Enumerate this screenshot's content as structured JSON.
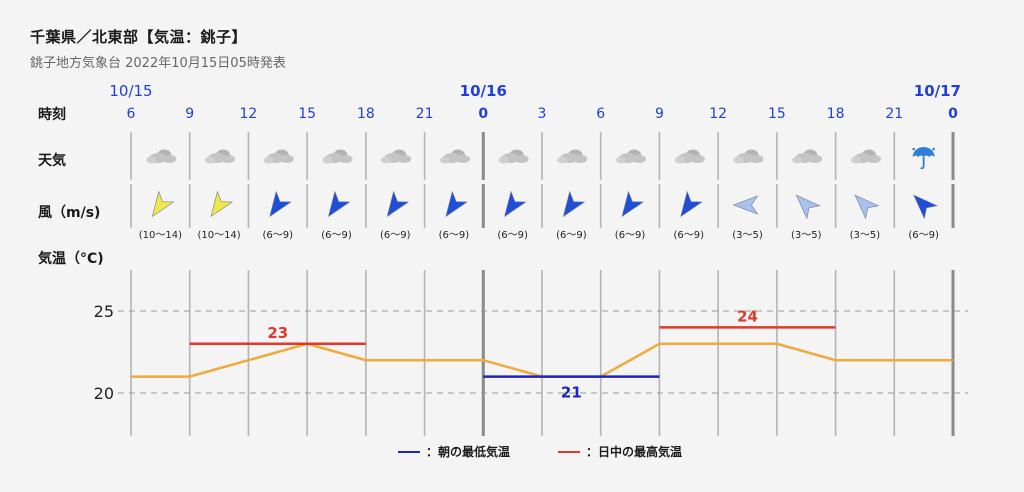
{
  "header": {
    "title": "千葉県／北東部【気温：銚子】",
    "subtitle": "銚子地方気象台 2022年10月15日05時発表"
  },
  "rows": {
    "time_label": "時刻",
    "weather_label": "天気",
    "wind_label": "風（m/s)",
    "temp_label": "気温（°C)"
  },
  "dates": [
    {
      "label": "10/15",
      "col": 0,
      "highlight": false
    },
    {
      "label": "10/16",
      "col": 6,
      "highlight": true
    },
    {
      "label": "10/17",
      "col": 14,
      "highlight": true
    }
  ],
  "hours": [
    "6",
    "9",
    "12",
    "15",
    "18",
    "21",
    "0",
    "3",
    "6",
    "9",
    "12",
    "15",
    "18",
    "21",
    "0"
  ],
  "weather": [
    "cloudy",
    "cloudy",
    "cloudy",
    "cloudy",
    "cloudy",
    "cloudy",
    "cloudy",
    "cloudy",
    "cloudy",
    "cloudy",
    "cloudy",
    "cloudy",
    "cloudy",
    "umbrella"
  ],
  "wind": [
    {
      "range": "(10〜14)",
      "color": "#f0e84a",
      "dir": "sw"
    },
    {
      "range": "(10〜14)",
      "color": "#f0e84a",
      "dir": "sw"
    },
    {
      "range": "(6〜9)",
      "color": "#1f4fd6",
      "dir": "sw"
    },
    {
      "range": "(6〜9)",
      "color": "#1f4fd6",
      "dir": "sw"
    },
    {
      "range": "(6〜9)",
      "color": "#1f4fd6",
      "dir": "sw"
    },
    {
      "range": "(6〜9)",
      "color": "#1f4fd6",
      "dir": "sw"
    },
    {
      "range": "(6〜9)",
      "color": "#1f4fd6",
      "dir": "sw"
    },
    {
      "range": "(6〜9)",
      "color": "#1f4fd6",
      "dir": "sw"
    },
    {
      "range": "(6〜9)",
      "color": "#1f4fd6",
      "dir": "sw"
    },
    {
      "range": "(6〜9)",
      "color": "#1f4fd6",
      "dir": "sw"
    },
    {
      "range": "(3〜5)",
      "color": "#a9c2ea",
      "dir": "w"
    },
    {
      "range": "(3〜5)",
      "color": "#a9c2ea",
      "dir": "nw"
    },
    {
      "range": "(3〜5)",
      "color": "#a9c2ea",
      "dir": "nw"
    },
    {
      "range": "(6〜9)",
      "color": "#1f4fd6",
      "dir": "nw"
    }
  ],
  "legend": {
    "min_label": "：朝の最低気温",
    "max_label": "：日中の最高気温",
    "min_color": "#1a23c8",
    "max_color": "#e0392b"
  },
  "chart_data": {
    "type": "line",
    "x": [
      "6",
      "9",
      "12",
      "15",
      "18",
      "21",
      "0",
      "3",
      "6",
      "9",
      "12",
      "15",
      "18",
      "21",
      "0"
    ],
    "series": [
      {
        "values": [
          21,
          21,
          22,
          23,
          22,
          22,
          22,
          21,
          21,
          23,
          23,
          23,
          22,
          22,
          22
        ]
      }
    ],
    "min_temp": {
      "value": 21,
      "label": "21",
      "from_index": 6,
      "to_index": 9
    },
    "max_temps": [
      {
        "value": 23,
        "label": "23",
        "from_index": 1,
        "to_index": 4
      },
      {
        "value": 24,
        "label": "24",
        "from_index": 9,
        "to_index": 12
      }
    ],
    "yticks": [
      20,
      25
    ],
    "ylim": [
      17.5,
      27.5
    ],
    "line_color": "#f0a93a",
    "grid_dashed": true
  }
}
